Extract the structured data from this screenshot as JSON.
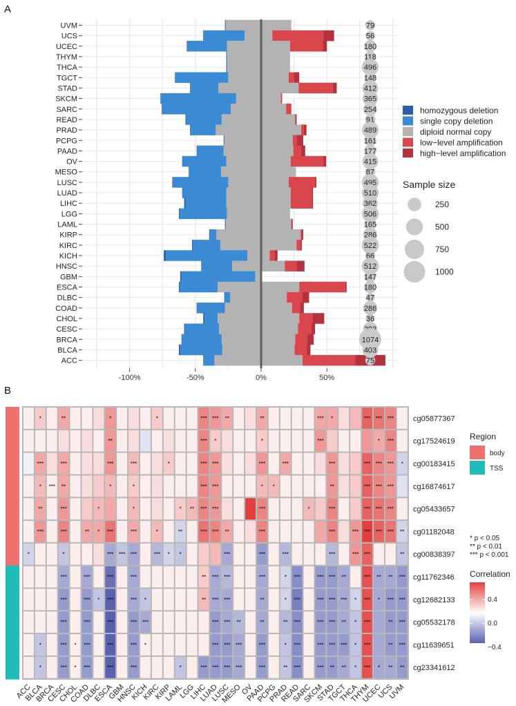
{
  "panel_a": {
    "tag": "A",
    "x_ticks": [
      "-100%",
      "-50%",
      "0%",
      "50%"
    ],
    "legend": [
      {
        "label": "homozygous deletion",
        "color": "#2c5fa8"
      },
      {
        "label": "single copy deletion",
        "color": "#3b8bd4"
      },
      {
        "label": "diploid normal copy",
        "color": "#b3b3b3"
      },
      {
        "label": "low−level amplification",
        "color": "#d9474d"
      },
      {
        "label": "high−level amplification",
        "color": "#b4323d"
      }
    ],
    "size_legend_title": "Sample size",
    "size_legend": [
      "250",
      "500",
      "750",
      "1000"
    ]
  },
  "panel_b": {
    "tag": "B",
    "region_legend_title": "Region",
    "region_legend": [
      {
        "label": "body",
        "color": "#f07070"
      },
      {
        "label": "TSS",
        "color": "#20bdb8"
      }
    ],
    "sig_legend": [
      "*   p < 0.05",
      "**  p < 0.01",
      "*** p < 0.001"
    ],
    "corr_legend_title": "Correlation",
    "corr_ticks": [
      "0.4",
      "0.0",
      "−0.4"
    ]
  },
  "chart_data": [
    {
      "type": "bar",
      "subtype": "diverging stacked bar (copy number variation)",
      "categories": [
        "UVM",
        "UCS",
        "UCEC",
        "THYM",
        "THCA",
        "TGCT",
        "STAD",
        "SKCM",
        "SARC",
        "READ",
        "PRAD",
        "PCPG",
        "PAAD",
        "OV",
        "MESO",
        "LUSC",
        "LUAD",
        "LIHC",
        "LGG",
        "LAML",
        "KIRP",
        "KIRC",
        "KICH",
        "HNSC",
        "GBM",
        "ESCA",
        "DLBC",
        "COAD",
        "CHOL",
        "CESC",
        "BRCA",
        "BLCA",
        "ACC"
      ],
      "sample_size": [
        79,
        56,
        180,
        118,
        496,
        148,
        412,
        365,
        254,
        91,
        489,
        161,
        177,
        415,
        87,
        495,
        510,
        362,
        506,
        165,
        286,
        522,
        66,
        512,
        147,
        180,
        47,
        286,
        36,
        292,
        1074,
        403,
        75
      ],
      "xlim": [
        -120,
        120
      ],
      "x_ticks": [
        -100,
        -50,
        0,
        50
      ],
      "series": [
        {
          "name": "homozygous deletion",
          "values": [
            0.5,
            0.5,
            0.5,
            0.5,
            0.5,
            0.5,
            0.5,
            0.5,
            0.5,
            0.5,
            0.5,
            0.5,
            0.5,
            0.5,
            0.5,
            0.5,
            0.5,
            1,
            0.5,
            0.5,
            0.5,
            0.5,
            1.5,
            0.5,
            1,
            0.5,
            0.5,
            0.5,
            1,
            0.5,
            0.5,
            1,
            0.5
          ]
        },
        {
          "name": "single copy deletion",
          "values": [
            0,
            31,
            30,
            0,
            0,
            40,
            21,
            57,
            52,
            27,
            19,
            0,
            20,
            33,
            24,
            42,
            33,
            31,
            36,
            0,
            5,
            21,
            62,
            23,
            56,
            29,
            4,
            21,
            10,
            26,
            30,
            32,
            8
          ]
        },
        {
          "name": "diploid normal copy",
          "values": [
            50,
            21,
            48,
            48,
            48,
            46,
            61,
            34,
            42,
            56,
            65,
            52,
            53,
            49,
            57,
            46,
            49,
            49,
            48,
            50,
            64,
            58,
            17,
            40,
            5,
            62,
            43,
            51,
            62,
            60,
            56,
            55,
            67
          ]
        },
        {
          "name": "low−level amplification",
          "values": [
            0,
            39,
            25,
            0,
            0,
            4,
            26,
            1,
            4,
            0,
            2,
            3,
            6,
            25,
            0,
            20,
            16,
            16,
            0,
            0,
            1,
            3,
            4,
            9,
            0,
            35,
            12,
            6,
            10,
            10,
            9,
            9,
            40
          ]
        },
        {
          "name": "high−level amplification",
          "values": [
            0,
            8,
            3,
            0,
            0,
            4,
            3,
            0,
            0,
            1,
            2,
            5,
            3,
            2,
            0,
            1,
            1,
            1,
            0,
            1,
            1,
            1,
            2,
            6,
            0,
            1,
            5,
            3,
            9,
            3,
            5,
            3,
            23
          ]
        }
      ],
      "grid": true
    },
    {
      "type": "heatmap",
      "x_categories": [
        "ACC",
        "BLCA",
        "BRCA",
        "CESC",
        "CHOL",
        "COAD",
        "DLBC",
        "ESCA",
        "GBM",
        "HNSC",
        "KICH",
        "KIRC",
        "KIRP",
        "LAML",
        "LGG",
        "LIHC",
        "LUAD",
        "LUSC",
        "MESO",
        "OV",
        "PAAD",
        "PCPG",
        "PRAD",
        "READ",
        "SARC",
        "SKCM",
        "STAD",
        "TGCT",
        "THCA",
        "THYM",
        "UCEC",
        "UCS",
        "UVM"
      ],
      "y_categories": [
        "cg05877367",
        "cg17524619",
        "cg00183415",
        "cg16874617",
        "cg05433657",
        "cg01182048",
        "cg00838397",
        "cg11762346",
        "cg12682133",
        "cg05532178",
        "cg11639651",
        "cg23341612"
      ],
      "region": [
        "body",
        "body",
        "body",
        "body",
        "body",
        "body",
        "body",
        "TSS",
        "TSS",
        "TSS",
        "TSS",
        "TSS"
      ],
      "values": [
        [
          0.05,
          0.15,
          0.05,
          0.25,
          0.05,
          0.05,
          0.1,
          0.3,
          0.05,
          0.1,
          0.05,
          0.15,
          0.05,
          0.05,
          0.05,
          0.35,
          0.3,
          0.25,
          0.05,
          0.1,
          0.25,
          0.05,
          0.05,
          0.05,
          0.05,
          0.25,
          0.25,
          0.1,
          0.2,
          0.45,
          0.4,
          0.35,
          0.05
        ],
        [
          0.05,
          0.05,
          0.05,
          0.1,
          0.05,
          0.1,
          0.05,
          0.3,
          0.05,
          0.1,
          -0.1,
          0.05,
          0.1,
          0.05,
          0.05,
          0.35,
          0.15,
          0.1,
          0.05,
          0.05,
          0.15,
          0.05,
          0.05,
          0.05,
          0.05,
          0.3,
          0.15,
          0.05,
          0.05,
          0.3,
          0.25,
          0.35,
          0.05
        ],
        [
          -0.05,
          0.25,
          0.1,
          0.25,
          0.05,
          0.1,
          0.1,
          0.3,
          0.05,
          0.2,
          0.05,
          0.1,
          0.15,
          0.05,
          0.05,
          0.35,
          0.3,
          0.1,
          0.05,
          0.1,
          0.3,
          0.05,
          0.25,
          0.05,
          0.05,
          0.1,
          0.3,
          0.1,
          0.15,
          0.45,
          0.35,
          0.3,
          -0.15
        ],
        [
          0.05,
          0.2,
          0.05,
          0.25,
          0.05,
          0.1,
          0.15,
          0.2,
          0.05,
          0.15,
          0.05,
          0.1,
          0.05,
          0.05,
          0.05,
          0.35,
          0.3,
          0.05,
          0.05,
          0.05,
          0.2,
          0.2,
          0.05,
          0.05,
          0.05,
          0.05,
          0.3,
          0.1,
          0.15,
          0.45,
          0.35,
          0.3,
          -0.1
        ],
        [
          0.05,
          0.25,
          0.05,
          0.3,
          0.05,
          0.15,
          0.2,
          0.25,
          0.05,
          0.2,
          0.05,
          0.1,
          0.05,
          0.15,
          0.2,
          0.35,
          0.3,
          0.1,
          0.05,
          0.55,
          0.35,
          0.05,
          0.05,
          0.05,
          0.2,
          0.15,
          0.35,
          0.05,
          0.15,
          0.45,
          0.4,
          0.35,
          0.05
        ],
        [
          0.05,
          0.3,
          0.05,
          0.35,
          0.05,
          0.25,
          0.25,
          0.4,
          0.05,
          0.25,
          0.05,
          0.2,
          0.05,
          -0.15,
          0.05,
          0.4,
          0.35,
          0.25,
          0.05,
          0.1,
          0.35,
          0.05,
          0.05,
          0.05,
          0.05,
          0.25,
          0.35,
          0.1,
          0.3,
          0.55,
          0.45,
          0.4,
          -0.15
        ],
        [
          -0.15,
          0.05,
          0.05,
          -0.2,
          0.05,
          0.05,
          0.1,
          -0.3,
          -0.2,
          -0.3,
          0.05,
          -0.25,
          -0.15,
          -0.2,
          0.05,
          0.15,
          0.2,
          -0.3,
          0.05,
          0.05,
          -0.35,
          0.05,
          -0.25,
          0.05,
          0.05,
          0.05,
          -0.25,
          0.05,
          0.3,
          0.45,
          0.05,
          0.05,
          -0.2
        ],
        [
          0.05,
          0.05,
          0.05,
          -0.3,
          0.05,
          -0.3,
          0.05,
          -0.5,
          0.05,
          -0.3,
          0.05,
          0.05,
          0.05,
          0.05,
          0.05,
          0.15,
          -0.3,
          -0.25,
          0.05,
          0.05,
          -0.3,
          0.05,
          -0.15,
          -0.4,
          0.05,
          -0.35,
          -0.35,
          -0.3,
          0.05,
          0.5,
          -0.3,
          -0.3,
          -0.35
        ],
        [
          0.05,
          0.05,
          0.05,
          -0.35,
          0.05,
          -0.35,
          -0.2,
          -0.55,
          0.05,
          -0.3,
          -0.2,
          0.05,
          0.05,
          0.05,
          0.05,
          0.2,
          -0.3,
          -0.3,
          0.05,
          0.05,
          -0.3,
          0.05,
          -0.15,
          -0.45,
          0.05,
          -0.35,
          -0.35,
          -0.3,
          -0.15,
          0.5,
          -0.3,
          -0.35,
          -0.35
        ],
        [
          0.05,
          0.05,
          0.05,
          -0.35,
          0.05,
          -0.35,
          0.05,
          -0.55,
          0.05,
          -0.35,
          -0.3,
          0.05,
          0.05,
          0.05,
          0.05,
          0.05,
          -0.35,
          -0.3,
          -0.25,
          0.05,
          -0.3,
          0.05,
          -0.25,
          -0.4,
          0.05,
          -0.35,
          -0.35,
          -0.3,
          -0.2,
          0.5,
          -0.3,
          -0.35,
          -0.35
        ],
        [
          0.05,
          -0.2,
          0.05,
          -0.35,
          0.05,
          -0.35,
          0.05,
          -0.55,
          0.05,
          -0.35,
          0.05,
          0.05,
          0.05,
          0.05,
          0.05,
          0.05,
          -0.35,
          -0.35,
          -0.3,
          0.05,
          -0.35,
          0.05,
          -0.2,
          -0.4,
          0.05,
          -0.35,
          -0.35,
          -0.35,
          -0.2,
          0.5,
          -0.3,
          -0.35,
          -0.35
        ],
        [
          0.05,
          -0.2,
          0.05,
          -0.35,
          0.05,
          -0.35,
          0.05,
          -0.55,
          0.05,
          -0.35,
          0.05,
          0.05,
          0.05,
          -0.2,
          0.05,
          -0.35,
          -0.35,
          -0.35,
          -0.3,
          0.05,
          -0.35,
          0.05,
          -0.2,
          -0.4,
          0.05,
          -0.35,
          -0.35,
          -0.3,
          -0.2,
          0.5,
          -0.3,
          -0.3,
          -0.35
        ]
      ],
      "significance": [
        [
          "",
          "*",
          "",
          "**",
          "",
          "",
          "",
          "*",
          "",
          "",
          "",
          "*",
          "",
          "",
          "",
          "***",
          "***",
          "**",
          "",
          "",
          "**",
          "",
          "",
          "",
          "",
          "***",
          "*",
          "",
          "",
          "***",
          "***",
          "***",
          ""
        ],
        [
          "",
          "",
          "",
          "",
          "",
          "",
          "",
          "**",
          "",
          "",
          "",
          "",
          "",
          "",
          "",
          "***",
          "*",
          "",
          "",
          "",
          "*",
          "",
          "",
          "",
          "",
          "***",
          "",
          "",
          "",
          "",
          "*",
          "***",
          ""
        ],
        [
          "",
          "***",
          "",
          "***",
          "",
          "",
          "",
          "***",
          "",
          "***",
          "",
          "",
          "*",
          "",
          "",
          "***",
          "***",
          "",
          "",
          "",
          "***",
          "",
          "***",
          "",
          "",
          "",
          "***",
          "",
          "",
          "***",
          "***",
          "***",
          "*"
        ],
        [
          "",
          "*",
          "***",
          "**",
          "",
          "",
          "",
          "*",
          "",
          "*",
          "",
          "",
          "",
          "",
          "",
          "***",
          "***",
          "",
          "",
          "",
          "*",
          "*",
          "",
          "",
          "",
          "",
          "**",
          "",
          "",
          "***",
          "***",
          "***",
          ""
        ],
        [
          "",
          "**",
          "",
          "***",
          "",
          "",
          "*",
          "",
          "",
          "*",
          "",
          "",
          "",
          "*",
          "**",
          "***",
          "***",
          "",
          "",
          "",
          "***",
          "",
          "",
          "",
          "*",
          "",
          "***",
          "",
          "",
          "***",
          "***",
          "***",
          ""
        ],
        [
          "",
          "***",
          "",
          "***",
          "",
          "**",
          "*",
          "***",
          "",
          "***",
          "",
          "*",
          "",
          "**",
          "",
          "***",
          "***",
          "**",
          "",
          "",
          "***",
          "",
          "",
          "",
          "",
          "",
          "***",
          "",
          "***",
          "***",
          "***",
          "***",
          "**"
        ],
        [
          "*",
          "",
          "",
          "*",
          "",
          "",
          "",
          "***",
          "***",
          "***",
          "",
          "***",
          "*",
          "*",
          "",
          "",
          "",
          "***",
          "",
          "",
          "***",
          "",
          "***",
          "",
          "",
          "",
          "***",
          "",
          "***",
          "***",
          "",
          "",
          "**"
        ],
        [
          "",
          "",
          "",
          "***",
          "",
          "***",
          "",
          "***",
          "",
          "***",
          "",
          "",
          "",
          "",
          "",
          "**",
          "***",
          "***",
          "",
          "",
          "***",
          "",
          "*",
          "***",
          "",
          "***",
          "***",
          "**",
          "",
          "***",
          "**",
          "**",
          "***"
        ],
        [
          "",
          "",
          "",
          "***",
          "",
          "***",
          "*",
          "***",
          "",
          "***",
          "*",
          "",
          "",
          "",
          "",
          "**",
          "***",
          "***",
          "",
          "",
          "**",
          "",
          "*",
          "***",
          "",
          "***",
          "***",
          "***",
          "*",
          "***",
          "*",
          "***",
          "***"
        ],
        [
          "",
          "",
          "",
          "***",
          "",
          "***",
          "",
          "***",
          "",
          "***",
          "***",
          "",
          "",
          "",
          "",
          "",
          "***",
          "***",
          "**",
          "",
          "**",
          "",
          "**",
          "***",
          "",
          "***",
          "***",
          "**",
          "*",
          "***",
          "",
          "**",
          "***"
        ],
        [
          "",
          "*",
          "",
          "***",
          "*",
          "***",
          "",
          "***",
          "",
          "***",
          "*",
          "",
          "",
          "",
          "",
          "",
          "***",
          "***",
          "***",
          "",
          "***",
          "",
          "*",
          "***",
          "",
          "***",
          "***",
          "***",
          "*",
          "***",
          "",
          "**",
          "***"
        ],
        [
          "",
          "*",
          "",
          "***",
          "*",
          "***",
          "",
          "***",
          "",
          "***",
          "",
          "",
          "",
          "*",
          "",
          "***",
          "***",
          "***",
          "***",
          "",
          "***",
          "",
          "**",
          "***",
          "",
          "***",
          "**",
          "**",
          "*",
          "***",
          "*",
          "**",
          "**"
        ]
      ],
      "color_scale": {
        "low": "#5a62b0",
        "mid": "#ffffff",
        "high": "#e0403e",
        "ticks": [
          0.4,
          0.0,
          -0.4
        ]
      }
    }
  ]
}
